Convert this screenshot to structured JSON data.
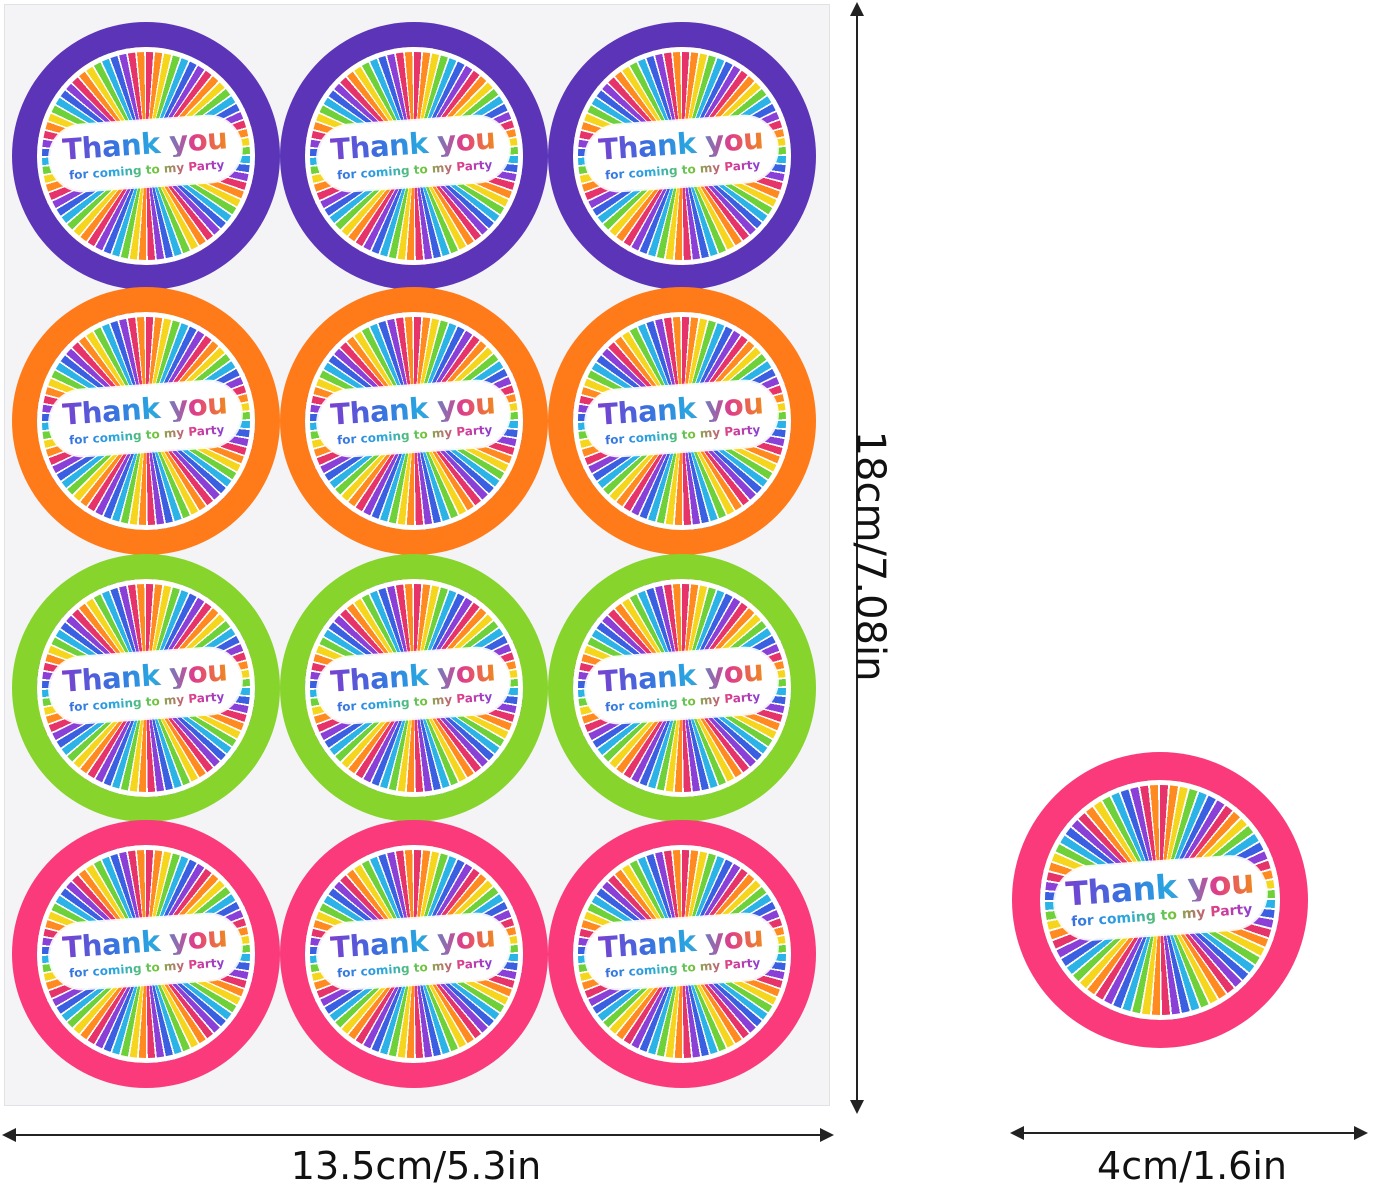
{
  "sticker": {
    "title": "Thank you",
    "subtitle": "for coming to my Party"
  },
  "sheet": {
    "rows": [
      {
        "color": "#5b34b8",
        "count": 3
      },
      {
        "color": "#ff7a18",
        "count": 3
      },
      {
        "color": "#86d42c",
        "count": 3
      },
      {
        "color": "#fa3a7a",
        "count": 3
      }
    ]
  },
  "single_sticker": {
    "color": "#fa3a7a"
  },
  "dimensions": {
    "sheet_height": "18cm/7.08in",
    "sheet_width": "13.5cm/5.3in",
    "sticker_diameter": "4cm/1.6in"
  }
}
